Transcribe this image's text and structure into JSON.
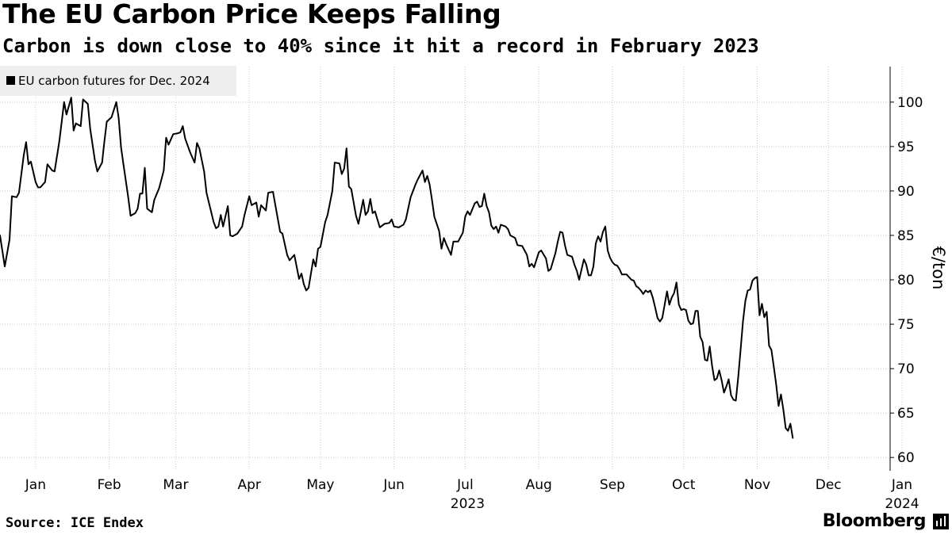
{
  "header": {
    "title": "The EU Carbon Price Keeps Falling",
    "subtitle": "Carbon is down close to 40% since it hit a record in February 2023"
  },
  "footer": {
    "source": "Source: ICE Endex",
    "brand": "Bloomberg"
  },
  "colors": {
    "line": "#000000",
    "grid": "#cccccc",
    "legend_bg": "#eeeeee"
  },
  "chart_data": {
    "type": "line",
    "title": "The EU Carbon Price Keeps Falling",
    "subtitle": "Carbon is down close to 40% since it hit a record in February 2023",
    "ylabel": "€/ton",
    "ylim": [
      60,
      104
    ],
    "yticks": [
      60,
      65,
      70,
      75,
      80,
      85,
      90,
      95,
      100
    ],
    "grid": true,
    "legend_position": "top-left",
    "x_unit": "days since 2023-01-01",
    "xlim": [
      0,
      375
    ],
    "xticks": [
      {
        "label": "Jan",
        "x": 15
      },
      {
        "label": "Feb",
        "x": 46
      },
      {
        "label": "Mar",
        "x": 74
      },
      {
        "label": "Apr",
        "x": 105
      },
      {
        "label": "May",
        "x": 135
      },
      {
        "label": "Jun",
        "x": 166
      },
      {
        "label": "Jul",
        "x": 196
      },
      {
        "label": "Aug",
        "x": 227
      },
      {
        "label": "Sep",
        "x": 258
      },
      {
        "label": "Oct",
        "x": 288
      },
      {
        "label": "Nov",
        "x": 319
      },
      {
        "label": "Dec",
        "x": 349
      },
      {
        "label": "Jan",
        "x": 380
      }
    ],
    "year_labels": [
      {
        "label": "2023",
        "x": 197
      },
      {
        "label": "2024",
        "x": 380
      }
    ],
    "series": [
      {
        "name": "EU carbon futures for Dec. 2024",
        "points": [
          [
            0,
            85
          ],
          [
            2,
            81.5
          ],
          [
            4,
            84.5
          ],
          [
            5,
            89.4
          ],
          [
            7,
            89.3
          ],
          [
            8,
            89.8
          ],
          [
            10,
            94
          ],
          [
            11,
            95.5
          ],
          [
            12,
            93
          ],
          [
            13,
            93.3
          ],
          [
            15,
            91
          ],
          [
            16,
            90.4
          ],
          [
            17,
            90.4
          ],
          [
            19,
            91
          ],
          [
            20,
            93
          ],
          [
            22,
            92.3
          ],
          [
            23,
            92.2
          ],
          [
            25,
            95.6
          ],
          [
            27,
            100
          ],
          [
            28,
            98.6
          ],
          [
            30,
            100.5
          ],
          [
            31,
            96.8
          ],
          [
            32,
            97.6
          ],
          [
            34,
            97.3
          ],
          [
            35,
            100.3
          ],
          [
            37,
            99.8
          ],
          [
            38,
            97
          ],
          [
            40,
            93.4
          ],
          [
            41,
            92.2
          ],
          [
            43,
            93.2
          ],
          [
            44,
            95.6
          ],
          [
            45,
            97.8
          ],
          [
            47,
            98.3
          ],
          [
            49,
            100
          ],
          [
            50,
            98.2
          ],
          [
            51,
            94.9
          ],
          [
            52,
            93
          ],
          [
            54,
            89.3
          ],
          [
            55,
            87.2
          ],
          [
            57,
            87.5
          ],
          [
            58,
            88
          ],
          [
            59,
            89.7
          ],
          [
            60,
            89.7
          ],
          [
            61,
            92.6
          ],
          [
            62,
            88
          ],
          [
            64,
            87.6
          ],
          [
            65,
            89
          ],
          [
            67,
            90.3
          ],
          [
            68,
            91.3
          ],
          [
            69,
            92.3
          ],
          [
            70,
            96
          ],
          [
            71,
            95.2
          ],
          [
            73,
            96.4
          ],
          [
            75,
            96.5
          ],
          [
            76,
            96.6
          ],
          [
            77,
            97.3
          ],
          [
            78,
            95.9
          ],
          [
            80,
            94.4
          ],
          [
            82,
            93.2
          ],
          [
            83,
            95.4
          ],
          [
            84,
            94.8
          ],
          [
            86,
            92.2
          ],
          [
            87,
            89.8
          ],
          [
            90,
            86.5
          ],
          [
            91,
            85.8
          ],
          [
            92,
            86
          ],
          [
            93,
            87.3
          ],
          [
            94,
            86
          ],
          [
            96,
            88.3
          ],
          [
            97,
            85
          ],
          [
            98,
            84.9
          ],
          [
            100,
            85.2
          ],
          [
            102,
            86
          ],
          [
            103,
            87.3
          ],
          [
            105,
            89.4
          ],
          [
            106,
            88.4
          ],
          [
            108,
            88.7
          ],
          [
            109,
            87.1
          ],
          [
            110,
            88.4
          ],
          [
            112,
            87.8
          ],
          [
            113,
            89.8
          ],
          [
            115,
            89.9
          ],
          [
            116,
            88.4
          ],
          [
            118,
            85.4
          ],
          [
            119,
            85.2
          ],
          [
            121,
            82.8
          ],
          [
            122,
            82.2
          ],
          [
            124,
            82.8
          ],
          [
            126,
            80.1
          ],
          [
            127,
            80.7
          ],
          [
            128,
            79.5
          ],
          [
            129,
            78.8
          ],
          [
            130,
            79.1
          ],
          [
            132,
            82.3
          ],
          [
            133,
            81.5
          ],
          [
            134,
            83.5
          ],
          [
            135,
            83.7
          ],
          [
            137,
            86.5
          ],
          [
            138,
            87.3
          ],
          [
            140,
            90
          ],
          [
            141,
            93.2
          ],
          [
            143,
            93.1
          ],
          [
            144,
            91.9
          ],
          [
            145,
            92.5
          ],
          [
            146,
            94.8
          ],
          [
            147,
            90.5
          ],
          [
            148,
            90.2
          ],
          [
            150,
            87.2
          ],
          [
            151,
            86.3
          ],
          [
            153,
            89
          ],
          [
            154,
            87.3
          ],
          [
            155,
            87.7
          ],
          [
            156,
            89.1
          ],
          [
            157,
            87.5
          ],
          [
            158,
            87.7
          ],
          [
            160,
            85.9
          ],
          [
            162,
            86.3
          ],
          [
            164,
            86.4
          ],
          [
            165,
            86.8
          ],
          [
            166,
            86
          ],
          [
            168,
            85.9
          ],
          [
            170,
            86.2
          ],
          [
            171,
            86.8
          ],
          [
            173,
            89.3
          ],
          [
            175,
            90.7
          ],
          [
            176,
            91.3
          ],
          [
            178,
            92.3
          ],
          [
            179,
            91
          ],
          [
            180,
            91.7
          ],
          [
            181,
            90.7
          ],
          [
            182,
            89
          ],
          [
            183,
            87.1
          ],
          [
            185,
            85.5
          ],
          [
            186,
            83.5
          ],
          [
            187,
            84.7
          ],
          [
            188,
            84
          ],
          [
            190,
            82.8
          ],
          [
            191,
            84.3
          ],
          [
            193,
            84.3
          ],
          [
            195,
            85.3
          ],
          [
            196,
            87.1
          ],
          [
            197,
            87.7
          ],
          [
            198,
            87.3
          ],
          [
            200,
            88.6
          ],
          [
            201,
            88.8
          ],
          [
            202,
            88.2
          ],
          [
            203,
            88.3
          ],
          [
            204,
            89.7
          ],
          [
            205,
            88.3
          ],
          [
            206,
            87.6
          ],
          [
            207,
            86.1
          ],
          [
            208,
            85.7
          ],
          [
            209,
            86
          ],
          [
            210,
            85.3
          ],
          [
            211,
            86.2
          ],
          [
            213,
            86
          ],
          [
            214,
            85.7
          ],
          [
            215,
            85
          ],
          [
            217,
            84.7
          ],
          [
            218,
            83.9
          ],
          [
            220,
            83.8
          ],
          [
            221,
            83.3
          ],
          [
            222,
            82.8
          ],
          [
            223,
            81.5
          ],
          [
            224,
            81.8
          ],
          [
            225,
            81.4
          ],
          [
            227,
            83.1
          ],
          [
            228,
            83.3
          ],
          [
            230,
            82.4
          ],
          [
            231,
            81
          ],
          [
            232,
            81.2
          ],
          [
            234,
            83
          ],
          [
            235,
            84.3
          ],
          [
            236,
            85.4
          ],
          [
            237,
            85.3
          ],
          [
            238,
            83.9
          ],
          [
            239,
            82.8
          ],
          [
            241,
            82.6
          ],
          [
            242,
            81.7
          ],
          [
            243,
            81
          ],
          [
            244,
            80
          ],
          [
            246,
            82.3
          ],
          [
            247,
            81.7
          ],
          [
            248,
            80.5
          ],
          [
            249,
            80.5
          ],
          [
            250,
            81.5
          ],
          [
            251,
            84.1
          ],
          [
            252,
            84.9
          ],
          [
            253,
            84.3
          ],
          [
            254,
            85.4
          ],
          [
            255,
            86
          ],
          [
            256,
            83.3
          ],
          [
            257,
            82.5
          ],
          [
            258,
            82
          ],
          [
            259,
            81.7
          ],
          [
            260,
            81.6
          ],
          [
            261,
            81.2
          ],
          [
            262,
            80.6
          ],
          [
            263,
            80.6
          ],
          [
            264,
            80.6
          ],
          [
            266,
            80
          ],
          [
            267,
            79.9
          ],
          [
            268,
            79.3
          ],
          [
            269,
            79.1
          ],
          [
            270,
            78.8
          ],
          [
            271,
            78.4
          ],
          [
            272,
            78.8
          ],
          [
            273,
            78.6
          ],
          [
            274,
            78.8
          ],
          [
            275,
            78
          ],
          [
            276,
            76.9
          ],
          [
            277,
            75.7
          ],
          [
            278,
            75.3
          ],
          [
            279,
            75.7
          ],
          [
            280,
            77.2
          ],
          [
            281,
            78.7
          ],
          [
            282,
            77.2
          ],
          [
            283,
            78
          ],
          [
            284,
            78.5
          ],
          [
            285,
            79.7
          ],
          [
            286,
            77.2
          ],
          [
            287,
            76.6
          ],
          [
            288,
            76.7
          ],
          [
            289,
            76.6
          ],
          [
            290,
            75.4
          ],
          [
            291,
            75
          ],
          [
            292,
            75.1
          ],
          [
            293,
            76.5
          ],
          [
            294,
            76.5
          ],
          [
            295,
            73.6
          ],
          [
            296,
            73
          ],
          [
            297,
            71
          ],
          [
            298,
            70.9
          ],
          [
            299,
            72.5
          ],
          [
            300,
            70.3
          ],
          [
            301,
            68.7
          ],
          [
            302,
            68.9
          ],
          [
            303,
            69.8
          ],
          [
            304,
            68.7
          ],
          [
            305,
            67.3
          ],
          [
            306,
            68
          ],
          [
            307,
            68.8
          ],
          [
            308,
            67
          ],
          [
            309,
            66.5
          ],
          [
            310,
            66.4
          ],
          [
            311,
            69
          ],
          [
            312,
            72.1
          ],
          [
            313,
            75.3
          ],
          [
            314,
            77.6
          ],
          [
            315,
            78.8
          ],
          [
            316,
            78.9
          ],
          [
            317,
            79.9
          ],
          [
            318,
            80.2
          ],
          [
            319,
            80.3
          ],
          [
            320,
            76
          ],
          [
            321,
            77.3
          ],
          [
            322,
            75.8
          ],
          [
            323,
            76.4
          ],
          [
            324,
            72.6
          ],
          [
            325,
            72.1
          ],
          [
            326,
            70.2
          ],
          [
            327,
            68.2
          ],
          [
            328,
            65.8
          ],
          [
            329,
            67.1
          ],
          [
            330,
            65.4
          ],
          [
            331,
            63.3
          ],
          [
            332,
            63
          ],
          [
            333,
            63.8
          ],
          [
            334,
            62.2
          ]
        ]
      }
    ]
  }
}
